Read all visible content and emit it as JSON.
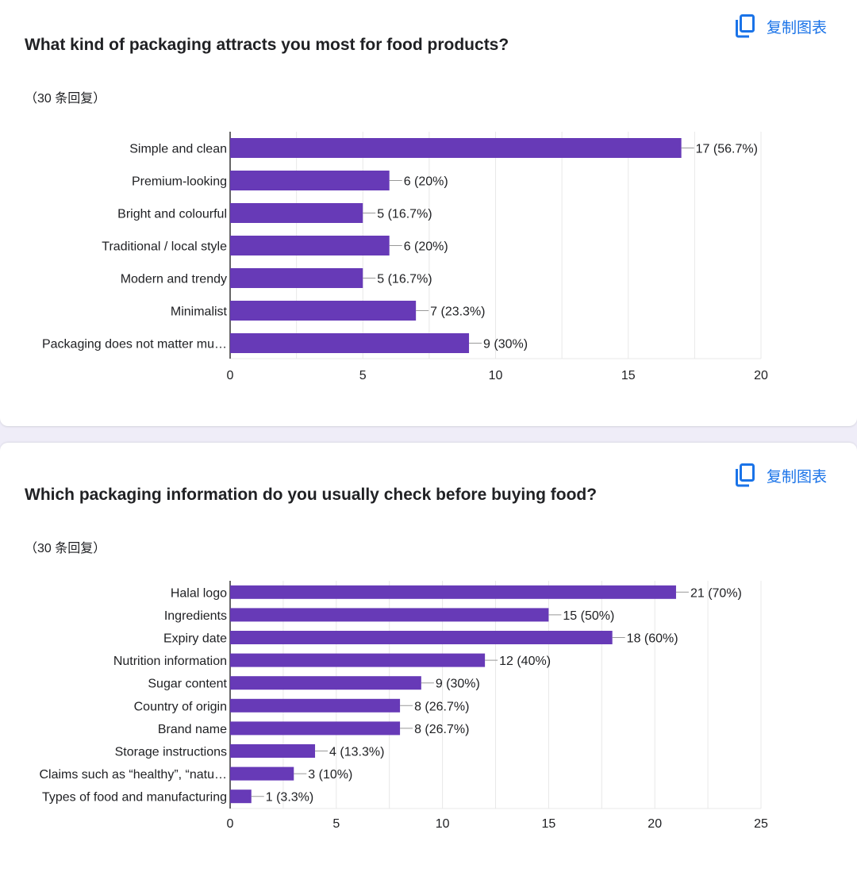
{
  "copy_button_label": "复制图表",
  "colors": {
    "bar": "#673ab7",
    "accent": "#1a73e8",
    "grid": "#e8e8e8",
    "axis": "#333333"
  },
  "chart_data": [
    {
      "type": "bar",
      "orientation": "horizontal",
      "title": "What kind of packaging attracts you most for food products?",
      "responses_label": "（30 条回复）",
      "categories": [
        "Simple and clean",
        "Premium-looking",
        "Bright and colourful",
        "Traditional / local style",
        "Modern and trendy",
        "Minimalist",
        "Packaging does not matter mu…"
      ],
      "values": [
        17,
        6,
        5,
        6,
        5,
        7,
        9
      ],
      "value_labels": [
        "17 (56.7%)",
        "6 (20%)",
        "5 (16.7%)",
        "6 (20%)",
        "5 (16.7%)",
        "7 (23.3%)",
        "9 (30%)"
      ],
      "xlim": [
        0,
        20
      ],
      "ticks": [
        0,
        5,
        10,
        15,
        20
      ],
      "grid": true,
      "xlabel": "",
      "ylabel": ""
    },
    {
      "type": "bar",
      "orientation": "horizontal",
      "title": "Which packaging information do you usually check before buying food?",
      "responses_label": "（30 条回复）",
      "categories": [
        "Halal logo",
        "Ingredients",
        "Expiry date",
        "Nutrition information",
        "Sugar content",
        "Country of origin",
        "Brand name",
        "Storage instructions",
        "Claims such as “healthy”, “natu…",
        "Types of food and manufacturing"
      ],
      "values": [
        21,
        15,
        18,
        12,
        9,
        8,
        8,
        4,
        3,
        1
      ],
      "value_labels": [
        "21 (70%)",
        "15 (50%)",
        "18 (60%)",
        "12 (40%)",
        "9 (30%)",
        "8 (26.7%)",
        "8 (26.7%)",
        "4 (13.3%)",
        "3 (10%)",
        "1 (3.3%)"
      ],
      "xlim": [
        0,
        25
      ],
      "ticks": [
        0,
        5,
        10,
        15,
        20,
        25
      ],
      "grid": true,
      "xlabel": "",
      "ylabel": ""
    }
  ]
}
